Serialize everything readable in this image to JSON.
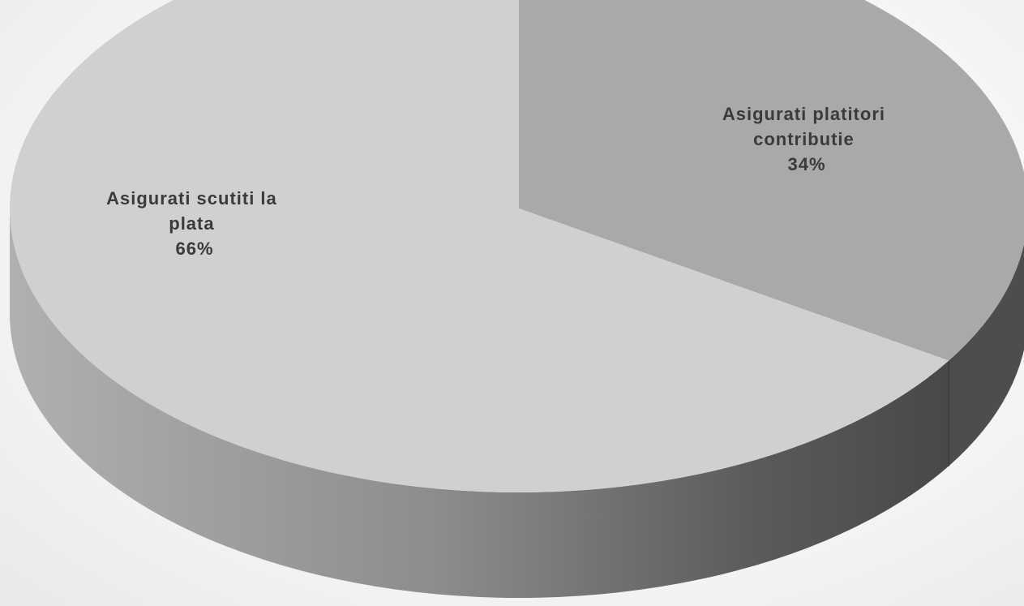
{
  "chart_data": {
    "type": "pie",
    "title": "",
    "style": "3d",
    "slices": [
      {
        "label": "Asigurati platitori contributie",
        "value": 34,
        "value_label": "34%",
        "color": "#a9a9a9",
        "side_color": "#4d4d4d"
      },
      {
        "label": "Asigurati scutiti la plata",
        "value": 66,
        "value_label": "66%",
        "color": "#d0d0d0",
        "side_color": "#8a8a8a"
      }
    ]
  }
}
